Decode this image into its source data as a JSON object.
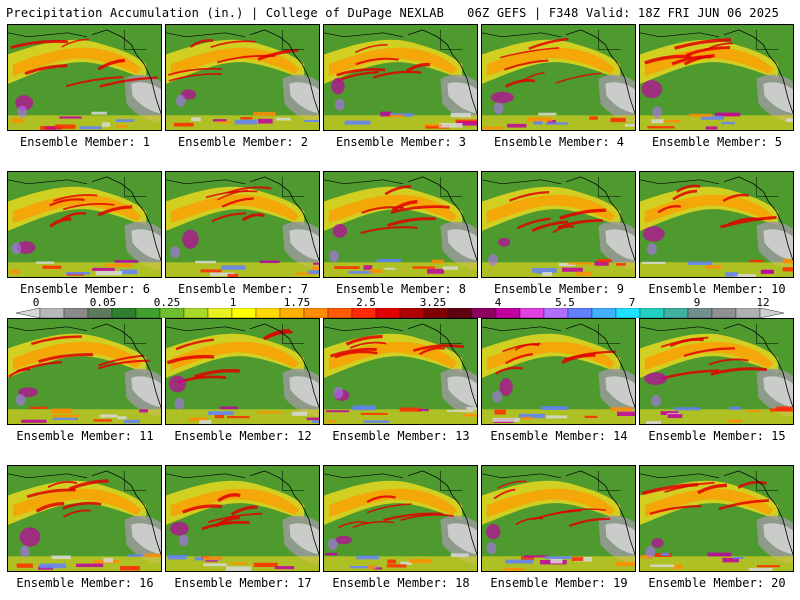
{
  "header": {
    "title_left": "Precipitation Accumulation (in.) | College of DuPage NEXLAB",
    "title_right": "06Z GEFS | F348 Valid: 18Z FRI JUN 06 2025"
  },
  "members": [
    {
      "label": "Ensemble Member: 1"
    },
    {
      "label": "Ensemble Member: 2"
    },
    {
      "label": "Ensemble Member: 3"
    },
    {
      "label": "Ensemble Member: 4"
    },
    {
      "label": "Ensemble Member: 5"
    },
    {
      "label": "Ensemble Member: 6"
    },
    {
      "label": "Ensemble Member: 7"
    },
    {
      "label": "Ensemble Member: 8"
    },
    {
      "label": "Ensemble Member: 9"
    },
    {
      "label": "Ensemble Member: 10"
    },
    {
      "label": "Ensemble Member: 11"
    },
    {
      "label": "Ensemble Member: 12"
    },
    {
      "label": "Ensemble Member: 13"
    },
    {
      "label": "Ensemble Member: 14"
    },
    {
      "label": "Ensemble Member: 15"
    },
    {
      "label": "Ensemble Member: 16"
    },
    {
      "label": "Ensemble Member: 17"
    },
    {
      "label": "Ensemble Member: 18"
    },
    {
      "label": "Ensemble Member: 19"
    },
    {
      "label": "Ensemble Member: 20"
    }
  ],
  "colorbar": {
    "labels": [
      "0",
      "0.05",
      "0.25",
      "1",
      "1.75",
      "2.5",
      "3.25",
      "4",
      "5.5",
      "7",
      "9",
      "12"
    ],
    "colors": [
      "#d8d8d8",
      "#b8b8b8",
      "#8a8a8a",
      "#5e7a5e",
      "#2f7f2f",
      "#3f9f2f",
      "#6fbf2f",
      "#a8d82a",
      "#e8f020",
      "#ffff00",
      "#ffd800",
      "#ffb000",
      "#ff8c00",
      "#ff5a00",
      "#ff2a00",
      "#e00000",
      "#b00000",
      "#800000",
      "#600010",
      "#900060",
      "#c000a0",
      "#e040e0",
      "#b070ff",
      "#6080ff",
      "#40b0ff",
      "#20e0ff",
      "#20d0c0",
      "#40b0a0",
      "#709090",
      "#909090",
      "#b0b0b0",
      "#d0d0d0"
    ]
  }
}
